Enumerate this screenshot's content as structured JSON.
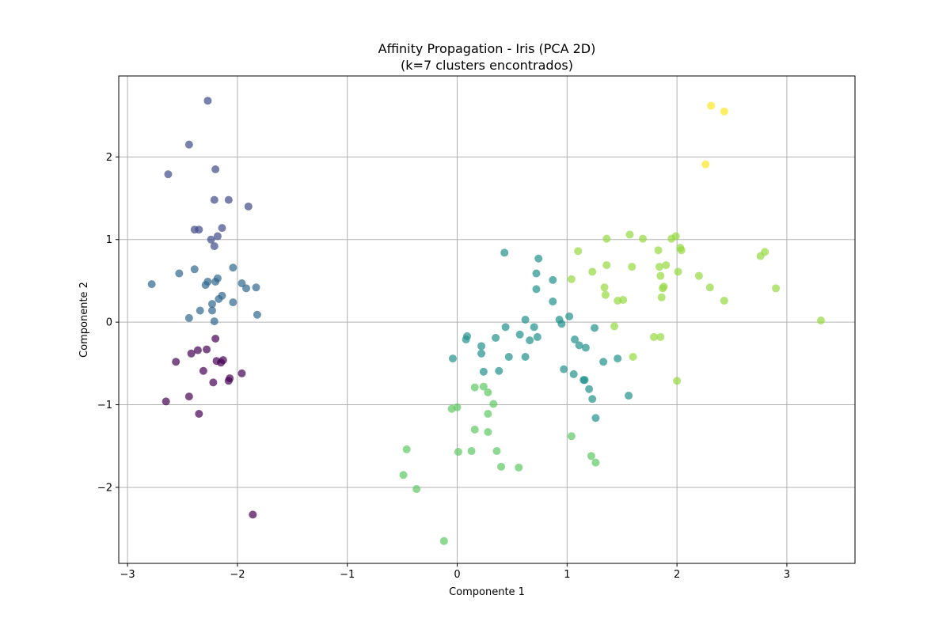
{
  "chart_data": {
    "type": "scatter",
    "title": "Affinity Propagation - Iris (PCA 2D)",
    "subtitle": "(k=7 clusters encontrados)",
    "xlabel": "Componente 1",
    "ylabel": "Componente 2",
    "xlim": [
      -3.08,
      3.62
    ],
    "ylim": [
      -2.92,
      2.98
    ],
    "xticks": [
      -3,
      -2,
      -1,
      0,
      1,
      2,
      3
    ],
    "yticks": [
      -2,
      -1,
      0,
      1,
      2
    ],
    "xtick_labels": [
      "−3",
      "−2",
      "−1",
      "0",
      "1",
      "2",
      "3"
    ],
    "ytick_labels": [
      "−2",
      "−1",
      "0",
      "1",
      "2"
    ],
    "grid": true,
    "series": [
      {
        "color": "#440154",
        "points": [
          [
            -2.2,
            -0.2
          ],
          [
            -2.36,
            -0.34
          ],
          [
            -2.42,
            -0.38
          ],
          [
            -2.28,
            -0.33
          ],
          [
            -2.13,
            -0.46
          ],
          [
            -2.19,
            -0.47
          ],
          [
            -2.15,
            -0.49
          ],
          [
            -2.56,
            -0.48
          ],
          [
            -2.07,
            -0.68
          ],
          [
            -2.08,
            -0.71
          ],
          [
            -1.96,
            -0.62
          ],
          [
            -2.31,
            -0.59
          ],
          [
            -2.22,
            -0.73
          ],
          [
            -2.44,
            -0.9
          ],
          [
            -2.65,
            -0.96
          ],
          [
            -2.35,
            -1.11
          ],
          [
            -1.86,
            -2.33
          ]
        ]
      },
      {
        "color": "#3e4a89",
        "points": [
          [
            -2.27,
            2.68
          ],
          [
            -2.44,
            2.15
          ],
          [
            -2.63,
            1.79
          ],
          [
            -2.2,
            1.85
          ],
          [
            -2.21,
            1.48
          ],
          [
            -2.08,
            1.48
          ],
          [
            -1.9,
            1.4
          ],
          [
            -2.39,
            1.12
          ],
          [
            -2.35,
            1.12
          ],
          [
            -2.14,
            1.14
          ],
          [
            -2.18,
            1.04
          ],
          [
            -2.24,
            1.0
          ],
          [
            -2.21,
            0.92
          ]
        ]
      },
      {
        "color": "#31688e",
        "points": [
          [
            -2.78,
            0.46
          ],
          [
            -2.53,
            0.59
          ],
          [
            -2.39,
            0.64
          ],
          [
            -2.04,
            0.66
          ],
          [
            -2.18,
            0.53
          ],
          [
            -2.27,
            0.49
          ],
          [
            -2.2,
            0.49
          ],
          [
            -2.29,
            0.45
          ],
          [
            -1.96,
            0.47
          ],
          [
            -1.92,
            0.41
          ],
          [
            -1.83,
            0.42
          ],
          [
            -2.14,
            0.32
          ],
          [
            -2.17,
            0.28
          ],
          [
            -2.04,
            0.24
          ],
          [
            -2.23,
            0.22
          ],
          [
            -2.23,
            0.14
          ],
          [
            -2.34,
            0.14
          ],
          [
            -2.44,
            0.05
          ],
          [
            -2.21,
            0.01
          ],
          [
            -1.82,
            0.09
          ]
        ]
      },
      {
        "color": "#21918c",
        "points": [
          [
            0.43,
            0.84
          ],
          [
            0.74,
            0.77
          ],
          [
            0.72,
            0.59
          ],
          [
            0.87,
            0.51
          ],
          [
            0.72,
            0.4
          ],
          [
            0.87,
            0.25
          ],
          [
            0.62,
            0.03
          ],
          [
            0.44,
            -0.06
          ],
          [
            0.7,
            -0.06
          ],
          [
            0.93,
            0.03
          ],
          [
            0.95,
            -0.02
          ],
          [
            1.02,
            0.07
          ],
          [
            1.25,
            -0.07
          ],
          [
            0.57,
            -0.15
          ],
          [
            0.66,
            -0.22
          ],
          [
            0.73,
            -0.18
          ],
          [
            0.35,
            -0.19
          ],
          [
            0.08,
            -0.21
          ],
          [
            0.09,
            -0.17
          ],
          [
            0.22,
            -0.29
          ],
          [
            0.22,
            -0.38
          ],
          [
            -0.04,
            -0.44
          ],
          [
            0.47,
            -0.42
          ],
          [
            0.62,
            -0.42
          ],
          [
            1.07,
            -0.21
          ],
          [
            1.11,
            -0.28
          ],
          [
            1.17,
            -0.31
          ],
          [
            0.97,
            -0.57
          ],
          [
            1.06,
            -0.63
          ],
          [
            1.33,
            -0.48
          ],
          [
            1.46,
            -0.44
          ],
          [
            0.24,
            -0.6
          ],
          [
            0.38,
            -0.59
          ],
          [
            1.15,
            -0.7
          ],
          [
            1.16,
            -0.7
          ],
          [
            1.2,
            -0.81
          ],
          [
            1.23,
            -0.93
          ],
          [
            1.56,
            -0.89
          ],
          [
            1.26,
            -1.16
          ]
        ]
      },
      {
        "color": "#5ec962",
        "points": [
          [
            0.16,
            -0.79
          ],
          [
            0.24,
            -0.78
          ],
          [
            0.28,
            -0.85
          ],
          [
            0.33,
            -0.99
          ],
          [
            -0.05,
            -1.05
          ],
          [
            0.0,
            -1.03
          ],
          [
            0.28,
            -1.11
          ],
          [
            0.16,
            -1.3
          ],
          [
            0.28,
            -1.33
          ],
          [
            0.01,
            -1.57
          ],
          [
            0.13,
            -1.56
          ],
          [
            0.36,
            -1.56
          ],
          [
            1.04,
            -1.38
          ],
          [
            1.22,
            -1.62
          ],
          [
            1.26,
            -1.7
          ],
          [
            -0.49,
            -1.85
          ],
          [
            -0.46,
            -1.54
          ],
          [
            -0.37,
            -2.02
          ],
          [
            0.4,
            -1.75
          ],
          [
            0.56,
            -1.76
          ],
          [
            -0.12,
            -2.65
          ]
        ]
      },
      {
        "color": "#95d840",
        "points": [
          [
            1.57,
            1.06
          ],
          [
            1.69,
            1.01
          ],
          [
            1.36,
            1.01
          ],
          [
            1.95,
            1.01
          ],
          [
            1.99,
            1.04
          ],
          [
            2.03,
            0.9
          ],
          [
            2.04,
            0.87
          ],
          [
            1.1,
            0.86
          ],
          [
            1.83,
            0.87
          ],
          [
            1.36,
            0.69
          ],
          [
            1.59,
            0.67
          ],
          [
            1.84,
            0.67
          ],
          [
            1.9,
            0.69
          ],
          [
            1.23,
            0.61
          ],
          [
            2.01,
            0.61
          ],
          [
            1.04,
            0.52
          ],
          [
            1.85,
            0.56
          ],
          [
            2.2,
            0.56
          ],
          [
            1.34,
            0.42
          ],
          [
            1.87,
            0.41
          ],
          [
            1.88,
            0.43
          ],
          [
            2.3,
            0.42
          ],
          [
            1.35,
            0.33
          ],
          [
            1.86,
            0.3
          ],
          [
            1.46,
            0.26
          ],
          [
            1.51,
            0.27
          ],
          [
            2.43,
            0.26
          ],
          [
            1.43,
            -0.05
          ],
          [
            1.79,
            -0.18
          ],
          [
            1.85,
            -0.18
          ],
          [
            1.6,
            -0.42
          ],
          [
            2.0,
            -0.71
          ],
          [
            2.76,
            0.8
          ],
          [
            2.8,
            0.85
          ],
          [
            2.9,
            0.41
          ],
          [
            3.31,
            0.02
          ]
        ]
      },
      {
        "color": "#fde725",
        "points": [
          [
            2.31,
            2.62
          ],
          [
            2.43,
            2.55
          ],
          [
            2.26,
            1.91
          ]
        ]
      }
    ]
  }
}
